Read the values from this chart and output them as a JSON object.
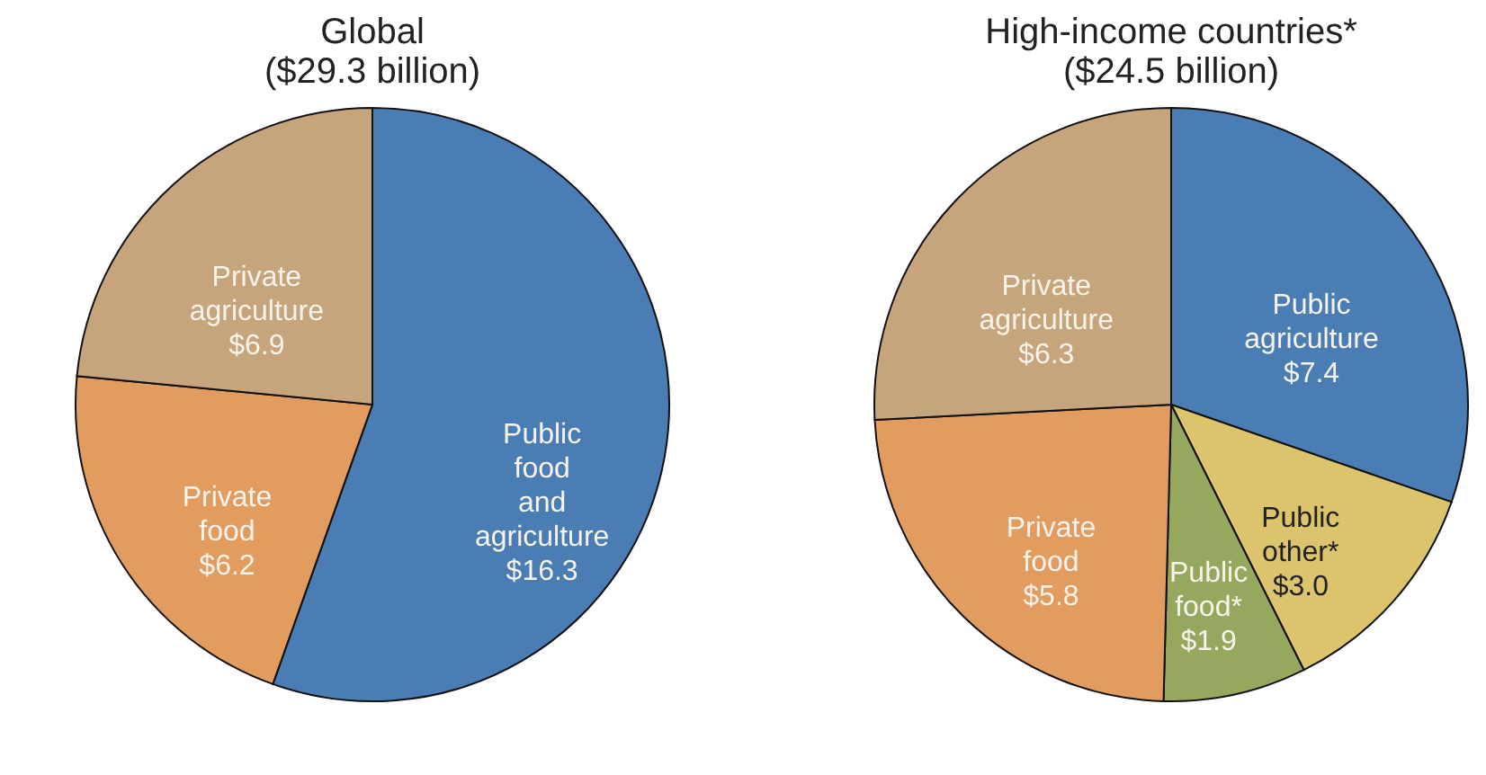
{
  "chart_data": [
    {
      "type": "pie",
      "title": "Global",
      "subtitle": "($29.3 billion)",
      "categories": [
        "Public food and agriculture",
        "Private food",
        "Private agriculture"
      ],
      "values": [
        16.3,
        6.2,
        6.9
      ],
      "value_labels": [
        "$16.3",
        "$6.2",
        "$6.9"
      ],
      "colors": [
        "#4a7db4",
        "#e39c60",
        "#c6a47c"
      ],
      "legend": false
    },
    {
      "type": "pie",
      "title": "High-income countries*",
      "subtitle": "($24.5 billion)",
      "categories": [
        "Public agriculture",
        "Public other*",
        "Public food*",
        "Private food",
        "Private agriculture"
      ],
      "values": [
        7.4,
        3.0,
        1.9,
        5.8,
        6.3
      ],
      "value_labels": [
        "$7.4",
        "$3.0",
        "$1.9",
        "$5.8",
        "$6.3"
      ],
      "colors": [
        "#4a7db4",
        "#dcc46c",
        "#96a75e",
        "#e39c60",
        "#c6a47c"
      ],
      "legend": false
    }
  ]
}
